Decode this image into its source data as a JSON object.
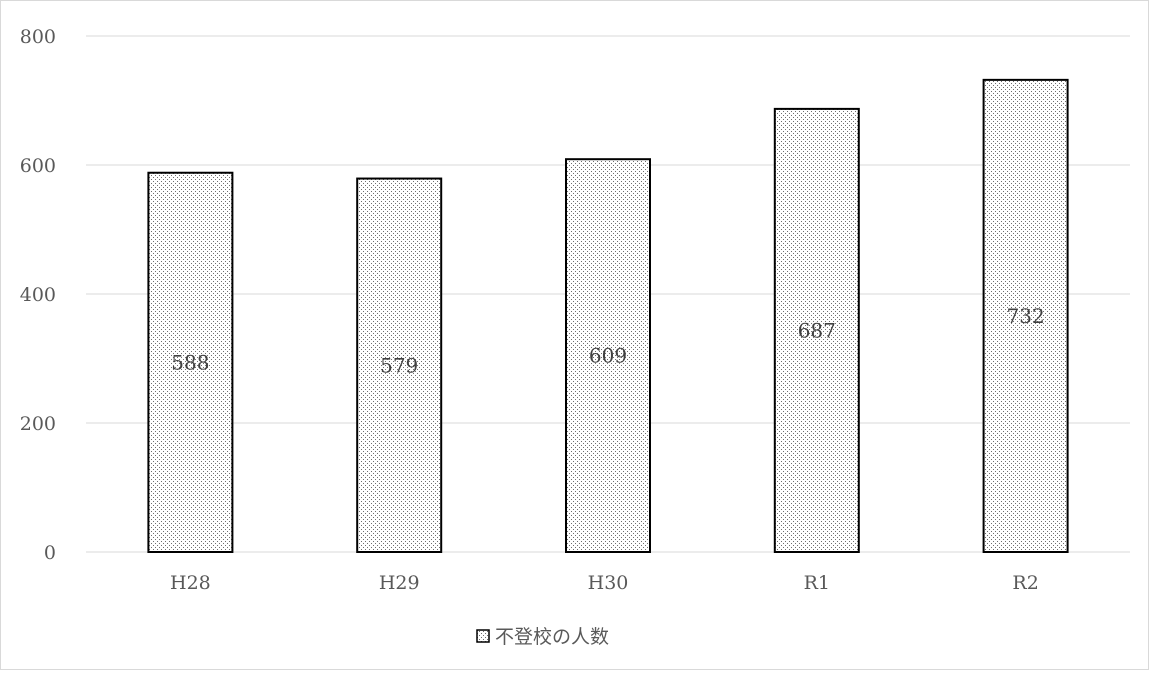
{
  "chart_data": {
    "type": "bar",
    "categories": [
      "H28",
      "H29",
      "H30",
      "R1",
      "R2"
    ],
    "series": [
      {
        "name": "不登校の人数",
        "values": [
          588,
          579,
          609,
          687,
          732
        ]
      }
    ],
    "data_labels": [
      "588",
      "579",
      "609",
      "687",
      "732"
    ],
    "y_ticks": [
      "0",
      "200",
      "400",
      "600",
      "800"
    ],
    "ylim": [
      0,
      800
    ],
    "title": "",
    "xlabel": "",
    "ylabel": "",
    "grid": true,
    "legend_position": "bottom",
    "bar_fill": "dotted pattern",
    "colors": {
      "bar_fill": "#ffffff",
      "bar_dots": "#6e6e6e",
      "bar_outline": "#000000",
      "gridline": "#d9d9d9",
      "axis_text": "#595959",
      "data_label_text": "#404040"
    }
  }
}
